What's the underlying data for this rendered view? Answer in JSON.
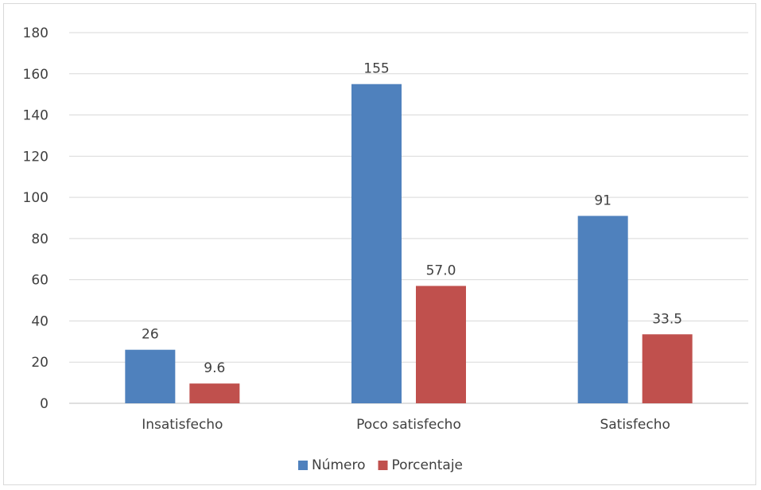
{
  "chart_data": {
    "type": "bar",
    "title": "",
    "xlabel": "",
    "ylabel": "",
    "categories": [
      "Insatisfecho",
      "Poco satisfecho",
      "Satisfecho"
    ],
    "series": [
      {
        "name": "Número",
        "color": "#4f81bd",
        "values": [
          26,
          155,
          91
        ],
        "labels": [
          "26",
          "155",
          "91"
        ]
      },
      {
        "name": "Porcentaje",
        "color": "#c0504d",
        "values": [
          9.6,
          57.0,
          33.5
        ],
        "labels": [
          "9.6",
          "57.0",
          "33.5"
        ]
      }
    ],
    "ylim": [
      0,
      180
    ],
    "yticks": [
      "0",
      "20",
      "40",
      "60",
      "80",
      "100",
      "120",
      "140",
      "160",
      "180"
    ],
    "grid": true,
    "legend_position": "bottom"
  }
}
